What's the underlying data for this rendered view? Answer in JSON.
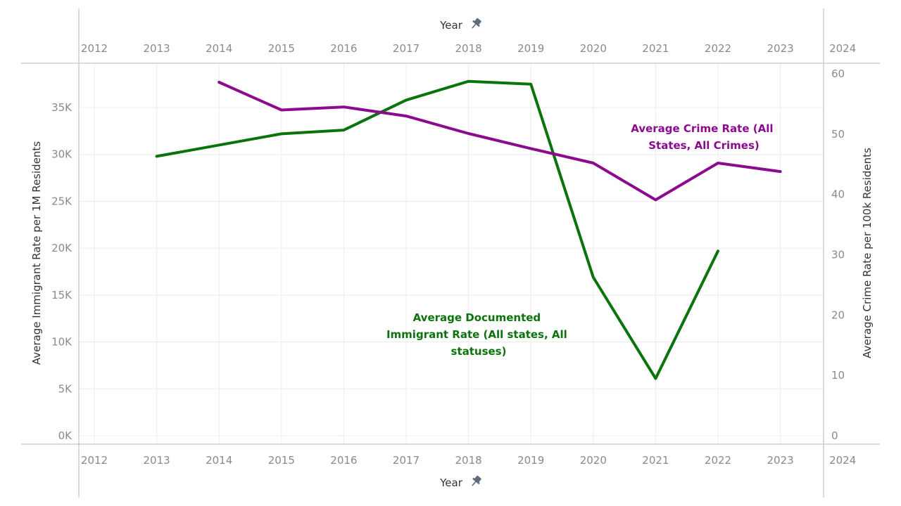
{
  "chart_data": {
    "type": "line",
    "x_axis": {
      "title": "Year",
      "ticks": [
        "2012",
        "2013",
        "2014",
        "2015",
        "2016",
        "2017",
        "2018",
        "2019",
        "2020",
        "2021",
        "2022",
        "2023",
        "2024"
      ],
      "range": [
        2012,
        2024
      ],
      "icon": "pin-icon"
    },
    "y_axis_left": {
      "title": "Average Immigrant Rate per 1M Residents",
      "ticks": [
        "0K",
        "5K",
        "10K",
        "15K",
        "20K",
        "25K",
        "30K",
        "35K"
      ],
      "range": [
        0,
        38600
      ]
    },
    "y_axis_right": {
      "title": "Average Crime Rate per 100k Residents",
      "ticks": [
        "0",
        "10",
        "20",
        "30",
        "40",
        "50",
        "60"
      ],
      "range": [
        0,
        60
      ]
    },
    "series": [
      {
        "name": "Average Documented Immigrant Rate (All states, All statuses)",
        "axis": "left",
        "color": "#0b730b",
        "points": [
          {
            "x": 2013,
            "y": 29800
          },
          {
            "x": 2015,
            "y": 32200
          },
          {
            "x": 2016,
            "y": 32600
          },
          {
            "x": 2017,
            "y": 35800
          },
          {
            "x": 2018,
            "y": 37800
          },
          {
            "x": 2019,
            "y": 37500
          },
          {
            "x": 2020,
            "y": 16900
          },
          {
            "x": 2021,
            "y": 6100
          },
          {
            "x": 2022,
            "y": 19700
          }
        ]
      },
      {
        "name": "Average Crime Rate (All States, All Crimes)",
        "axis": "right",
        "color": "#8b0a8e",
        "points": [
          {
            "x": 2014,
            "y": 58.6
          },
          {
            "x": 2015,
            "y": 54.0
          },
          {
            "x": 2016,
            "y": 54.5
          },
          {
            "x": 2017,
            "y": 53.0
          },
          {
            "x": 2018,
            "y": 50.1
          },
          {
            "x": 2019,
            "y": 47.6
          },
          {
            "x": 2020,
            "y": 45.2
          },
          {
            "x": 2021,
            "y": 39.1
          },
          {
            "x": 2022,
            "y": 45.2
          },
          {
            "x": 2023,
            "y": 43.8
          }
        ]
      }
    ],
    "annotations": [
      {
        "lines": [
          "Average Crime Rate (All",
          "States, All Crimes)"
        ],
        "series_index": 1
      },
      {
        "lines": [
          "Average Documented",
          "Immigrant Rate (All states, All",
          "statuses)"
        ],
        "series_index": 0
      }
    ],
    "grid": true,
    "legend": "none"
  }
}
